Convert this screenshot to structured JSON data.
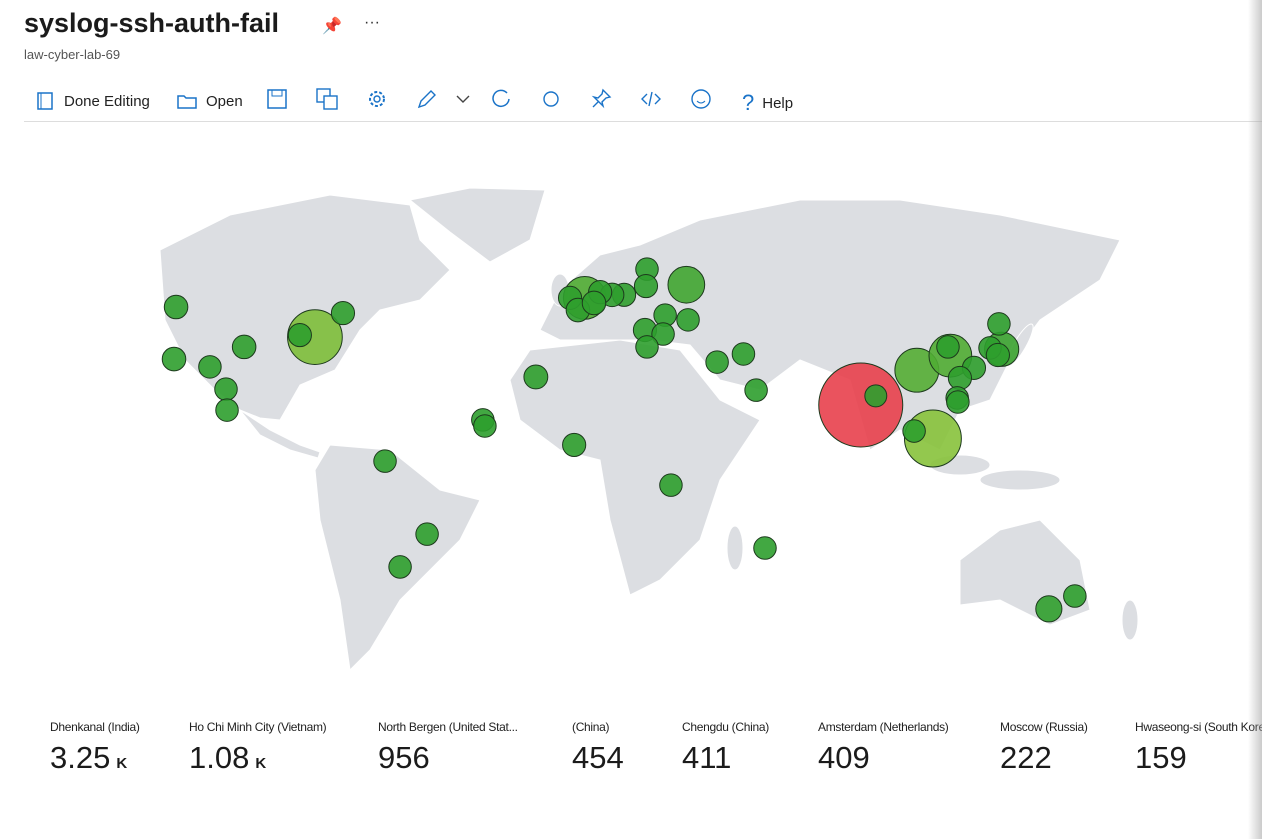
{
  "header": {
    "title": "syslog-ssh-auth-fail",
    "subtitle": "law-cyber-lab-69"
  },
  "toolbar": {
    "items": [
      "Done Editing",
      "Open",
      "Help"
    ]
  },
  "map": {
    "color_scale": [
      "#2e9e2e",
      "#8cc43c",
      "#e8404c"
    ],
    "tiles": [
      {
        "label": "Dhenkanal (India)",
        "value": 3250,
        "value_label": "3.25 K",
        "lon": 85.6,
        "lat": 20.7
      },
      {
        "label": "Ho Chi Minh City (Vietnam)",
        "value": 1080,
        "value_label": "1.08 K",
        "lon": 106.7,
        "lat": 10.8
      },
      {
        "label": "North Bergen (United Stat...",
        "value": 956,
        "lon": -74,
        "lat": 40.8
      },
      {
        "label": "(China)",
        "value": 454,
        "lon": 102,
        "lat": 31
      },
      {
        "label": "Chengdu (China)",
        "value": 411,
        "lon": 111.8,
        "lat": 35.3
      },
      {
        "label": "Amsterdam (Netherlands)",
        "value": 409,
        "lon": 4.9,
        "lat": 52.4
      },
      {
        "label": "Moscow (Russia)",
        "value": 222,
        "lon": 34.6,
        "lat": 56.3
      },
      {
        "label": "Hwaseong-si (South Kore",
        "value": 159,
        "lon": 126.8,
        "lat": 37.2
      }
    ],
    "points": [
      {
        "lon": -114.6,
        "lat": 49.7,
        "value": 10
      },
      {
        "lon": -115.2,
        "lat": 34.3,
        "value": 10
      },
      {
        "lon": -104.7,
        "lat": 32,
        "value": 5
      },
      {
        "lon": -94.7,
        "lat": 37.9,
        "value": 10
      },
      {
        "lon": -100,
        "lat": 25.4,
        "value": 5
      },
      {
        "lon": -99.7,
        "lat": 19.2,
        "value": 5
      },
      {
        "lon": -78.4,
        "lat": 41.4,
        "value": 8
      },
      {
        "lon": -65.8,
        "lat": 47.9,
        "value": 8
      },
      {
        "lon": -9.4,
        "lat": 29,
        "value": 12
      },
      {
        "lon": -24.9,
        "lat": 16.3,
        "value": 5
      },
      {
        "lon": -24.3,
        "lat": 14.5,
        "value": 5
      },
      {
        "lon": -53.5,
        "lat": 4.1,
        "value": 5
      },
      {
        "lon": 1.8,
        "lat": 8.9,
        "value": 8
      },
      {
        "lon": -41.2,
        "lat": -17.5,
        "value": 5
      },
      {
        "lon": -49.1,
        "lat": -27.2,
        "value": 5
      },
      {
        "lon": 30.1,
        "lat": -3,
        "value": 5
      },
      {
        "lon": 57.6,
        "lat": -21.6,
        "value": 5
      },
      {
        "lon": 23.1,
        "lat": 60.9,
        "value": 5
      },
      {
        "lon": 22.8,
        "lat": 55.9,
        "value": 8
      },
      {
        "lon": 16.4,
        "lat": 53.3,
        "value": 8
      },
      {
        "lon": 12.9,
        "lat": 53.3,
        "value": 10
      },
      {
        "lon": 9.4,
        "lat": 54.1,
        "value": 8
      },
      {
        "lon": 0.6,
        "lat": 52.4,
        "value": 8
      },
      {
        "lon": 2.9,
        "lat": 48.8,
        "value": 10
      },
      {
        "lon": 7.6,
        "lat": 50.9,
        "value": 10
      },
      {
        "lon": 28.4,
        "lat": 47.3,
        "value": 5
      },
      {
        "lon": 35.1,
        "lat": 45.9,
        "value": 5
      },
      {
        "lon": 22.5,
        "lat": 42.9,
        "value": 8
      },
      {
        "lon": 27.8,
        "lat": 41.7,
        "value": 5
      },
      {
        "lon": 23.1,
        "lat": 37.9,
        "value": 5
      },
      {
        "lon": 43.6,
        "lat": 33.4,
        "value": 5
      },
      {
        "lon": 51.3,
        "lat": 35.8,
        "value": 5
      },
      {
        "lon": 55,
        "lat": 25.1,
        "value": 5
      },
      {
        "lon": 111.1,
        "lat": 37.9,
        "value": 5
      },
      {
        "lon": 118.7,
        "lat": 31.7,
        "value": 8
      },
      {
        "lon": 114.6,
        "lat": 28.7,
        "value": 8
      },
      {
        "lon": 113.8,
        "lat": 22.8,
        "value": 5
      },
      {
        "lon": 114,
        "lat": 21.6,
        "value": 5
      },
      {
        "lon": 101.2,
        "lat": 13,
        "value": 5
      },
      {
        "lon": 126,
        "lat": 44.7,
        "value": 5
      },
      {
        "lon": 123.4,
        "lat": 37.6,
        "value": 5
      },
      {
        "lon": 125.7,
        "lat": 35.5,
        "value": 8
      },
      {
        "lon": 90,
        "lat": 23.4,
        "value": 3
      },
      {
        "lon": 148.2,
        "lat": -35.8,
        "value": 5
      },
      {
        "lon": 140.6,
        "lat": -39.6,
        "value": 30
      }
    ]
  }
}
